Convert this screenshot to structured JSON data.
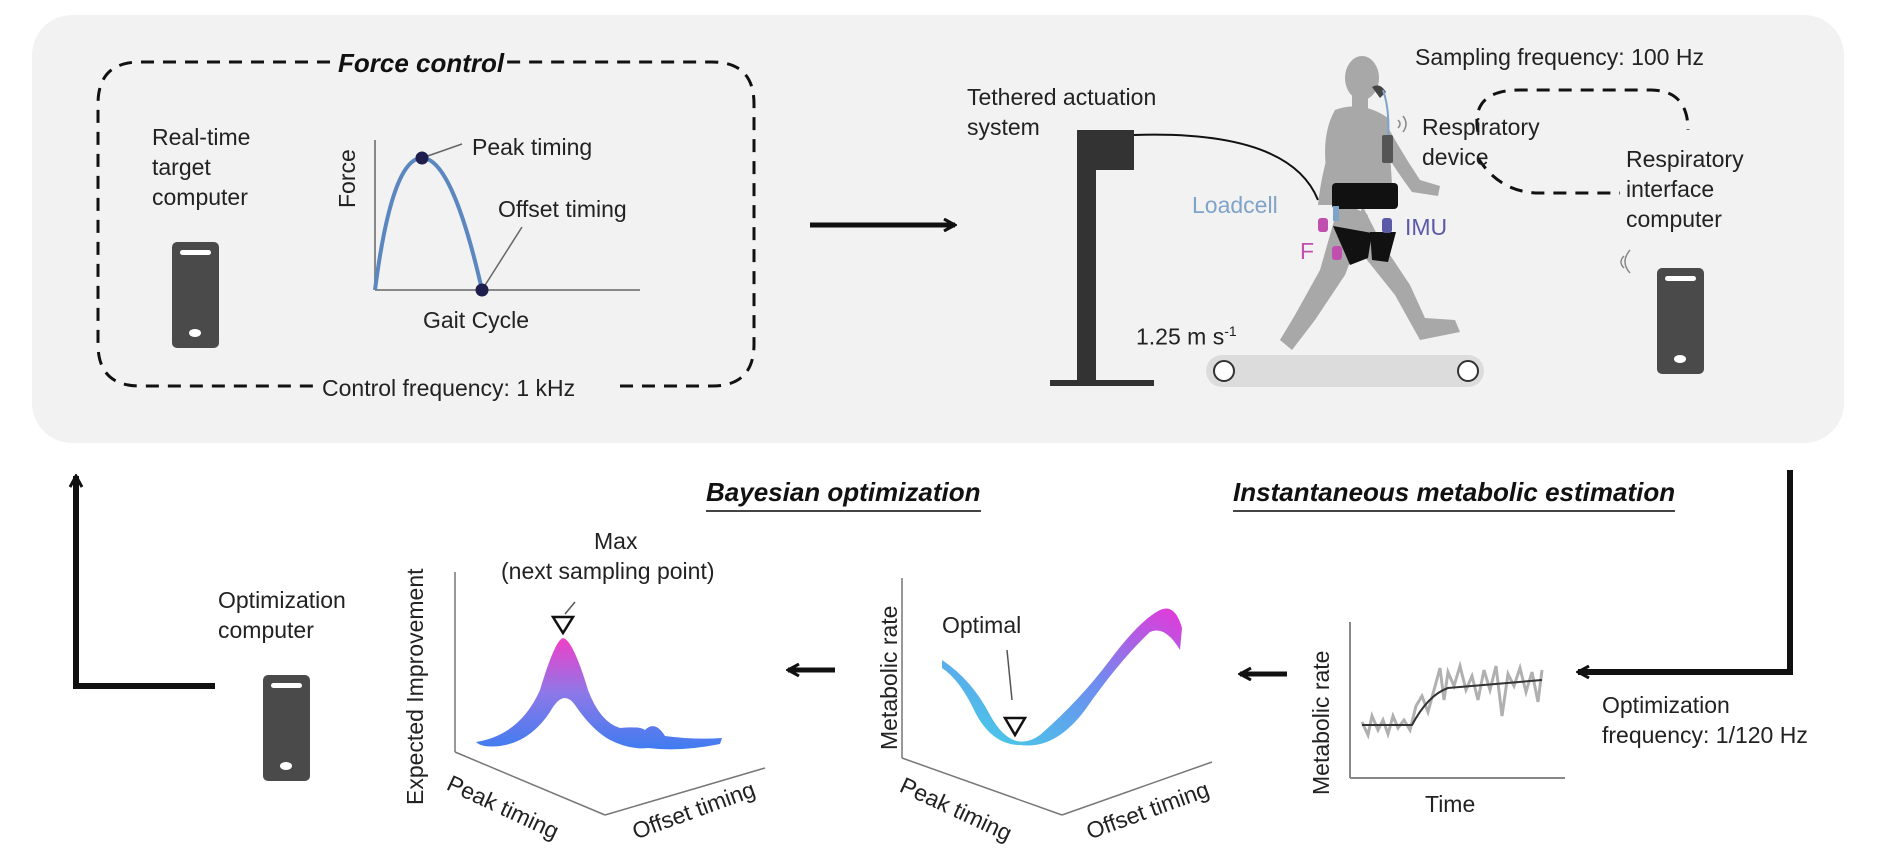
{
  "top_panel": {
    "force_control": {
      "title": "Force control",
      "computer_label_lines": [
        "Real-time",
        "target",
        "computer"
      ],
      "plot": {
        "ylabel": "Force",
        "xlabel": "Gait Cycle",
        "peak_label": "Peak timing",
        "offset_label": "Offset timing"
      },
      "control_frequency": "Control frequency: 1 kHz"
    },
    "actuation": {
      "tethered_label_lines": [
        "Tethered actuation",
        "system"
      ],
      "loadcell": "Loadcell",
      "f_label": "F",
      "imu": "IMU",
      "speed_label": "1.25 m s",
      "speed_sup": "-1",
      "sampling_frequency": "Sampling frequency: 100 Hz",
      "respiratory_device_lines": [
        "Respiratory",
        "device"
      ],
      "respiratory_computer_lines": [
        "Respiratory",
        "interface",
        "computer"
      ]
    }
  },
  "bottom_panel": {
    "instantaneous_title": "Instantaneous metabolic estimation",
    "bayesian_title": "Bayesian optimization",
    "optimization_frequency_lines": [
      "Optimization",
      "frequency: 1/120 Hz"
    ],
    "metabolic_plot": {
      "ylabel": "Metabolic rate",
      "xlabel": "Time"
    },
    "surface_plot": {
      "zlabel": "Metabolic rate",
      "optimal_label": "Optimal",
      "axis1": "Peak timing",
      "axis2": "Offset timing"
    },
    "ei_plot": {
      "zlabel": "Expected Improvement",
      "max_label_lines": [
        "Max",
        "(next sampling point)"
      ],
      "axis1": "Peak timing",
      "axis2": "Offset timing"
    },
    "optimization_computer_lines": [
      "Optimization",
      "computer"
    ]
  },
  "colors": {
    "panel_bg": "#f2f2f2",
    "device": "#4a4a4a",
    "curve_blue": "#5b86c0",
    "loadcell_blue": "#7fa3c9",
    "imu_purple": "#5a5aa8",
    "f_magenta": "#c04fb0",
    "human_gray": "#a8a8a8",
    "surface_cyan": "#3fd6e6",
    "surface_magenta": "#e637d9"
  }
}
